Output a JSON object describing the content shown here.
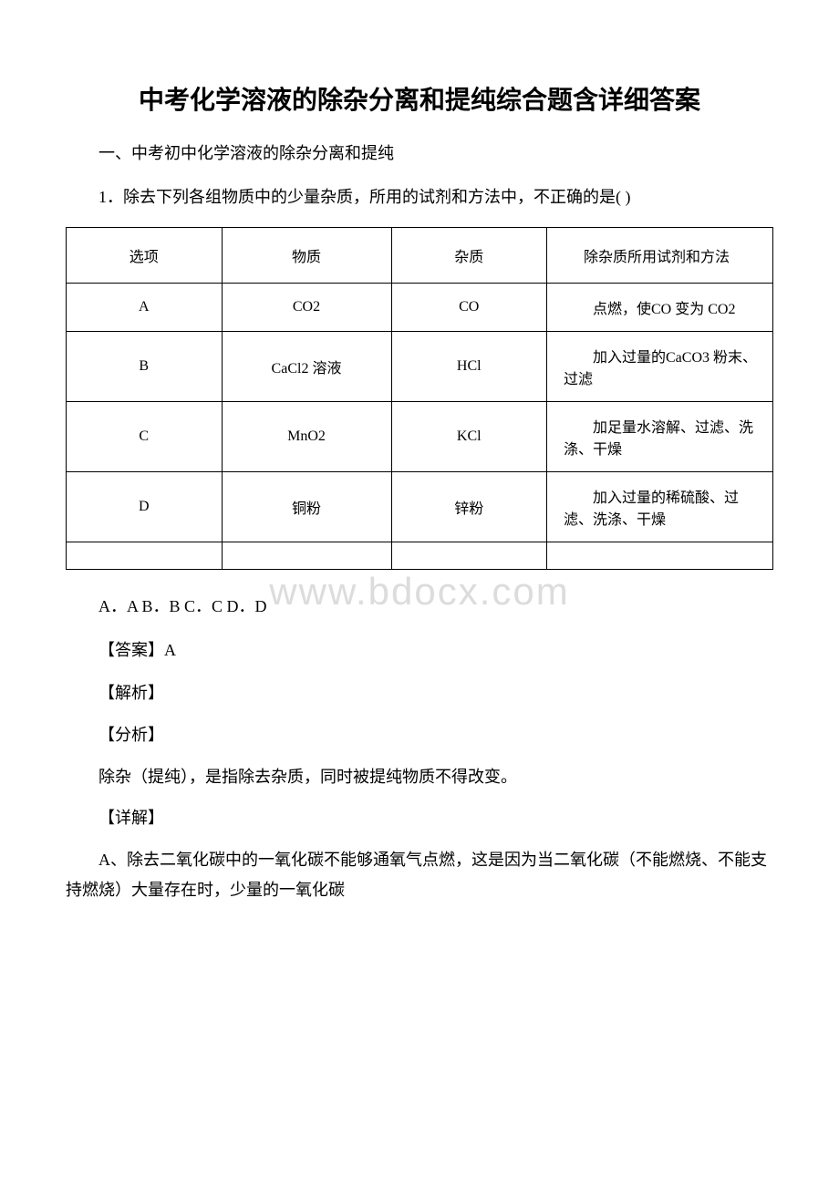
{
  "title": "中考化学溶液的除杂分离和提纯综合题含详细答案",
  "section_heading": "一、中考初中化学溶液的除杂分离和提纯",
  "q1": {
    "prompt": "1．除去下列各组物质中的少量杂质，所用的试剂和方法中，不正确的是( )",
    "table": {
      "headers": [
        "选项",
        "物质",
        "杂质",
        "除杂质所用试剂和方法"
      ],
      "rows": [
        {
          "opt": "A",
          "sub": "CO2",
          "imp": "CO",
          "method": "点燃，使CO 变为 CO2"
        },
        {
          "opt": "B",
          "sub": "CaCl2 溶液",
          "imp": "HCl",
          "method": "加入过量的CaCO3 粉末、过滤"
        },
        {
          "opt": "C",
          "sub": "MnO2",
          "imp": "KCl",
          "method": "加足量水溶解、过滤、洗涤、干燥"
        },
        {
          "opt": "D",
          "sub": "铜粉",
          "imp": "锌粉",
          "method": "加入过量的稀硫酸、过滤、洗涤、干燥"
        }
      ]
    },
    "options": "A．A B．B C．C D．D",
    "answer_label": "【答案】A",
    "jiexi_label": "【解析】",
    "fenxi_label": "【分析】",
    "fenxi_text": "除杂（提纯），是指除去杂质，同时被提纯物质不得改变。",
    "xiangjie_label": "【详解】",
    "xiangjie_text": "A、除去二氧化碳中的一氧化碳不能够通氧气点燃，这是因为当二氧化碳（不能燃烧、不能支持燃烧）大量存在时，少量的一氧化碳"
  },
  "watermark": "www.bdocx.com",
  "colors": {
    "text": "#000000",
    "background": "#ffffff",
    "border": "#000000",
    "watermark": "#dcdcdc"
  },
  "typography": {
    "title_fontsize": 28,
    "body_fontsize": 18,
    "table_fontsize": 16,
    "font_family": "SimSun"
  }
}
